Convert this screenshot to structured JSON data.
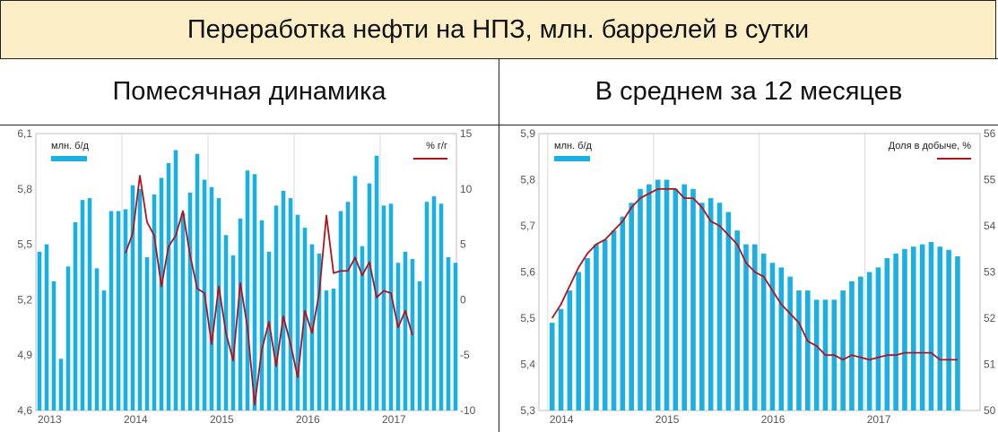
{
  "header": {
    "title": "Переработка нефти на НПЗ, млн. баррелей в сутки"
  },
  "panels": {
    "left_title": "Помесячная динамика",
    "right_title": "В среднем за 12 месяцев"
  },
  "colors": {
    "bar": "#1ab0e4",
    "line": "#b2131b",
    "grid": "#d9d9d9",
    "axis": "#555555"
  },
  "chart_data": [
    {
      "type": "bar+line",
      "title": "Помесячная динамика",
      "ylim_left": [
        4.6,
        6.1
      ],
      "yticks_left": [
        "4,6",
        "4,9",
        "5,2",
        "5,5",
        "5,8",
        "6,1"
      ],
      "ylim_right": [
        -10,
        15
      ],
      "yticks_right": [
        "-10",
        "-5",
        "0",
        "5",
        "10",
        "15"
      ],
      "x_labels": [
        "2013",
        "2014",
        "2015",
        "2016",
        "2017"
      ],
      "legend_bar": "млн. б/д",
      "legend_line": "% г/г",
      "grid": "vertical",
      "series": [
        {
          "name": "млн. б/д",
          "axis": "left",
          "start": "2013-01",
          "values": [
            5.46,
            5.5,
            5.3,
            4.88,
            5.38,
            5.62,
            5.74,
            5.75,
            5.37,
            5.25,
            5.68,
            5.68,
            5.69,
            5.82,
            5.8,
            5.43,
            5.77,
            5.86,
            5.94,
            6.01,
            5.67,
            5.78,
            5.99,
            5.85,
            5.81,
            5.75,
            5.55,
            5.44,
            5.64,
            5.9,
            5.88,
            5.63,
            5.46,
            5.71,
            5.79,
            5.75,
            5.66,
            5.59,
            5.5,
            5.45,
            5.25,
            5.26,
            5.68,
            5.73,
            5.87,
            5.49,
            5.83,
            5.98,
            5.71,
            5.72,
            5.4,
            5.46,
            5.42,
            5.3,
            5.73,
            5.76,
            5.72,
            5.43,
            5.4
          ]
        },
        {
          "name": "% г/г",
          "axis": "right",
          "start": "2014-01",
          "values": [
            4.2,
            6.0,
            11.2,
            7.0,
            5.8,
            1.2,
            4.8,
            5.8,
            8.0,
            4.0,
            1.0,
            0.6,
            -4.0,
            1.2,
            -3.0,
            -5.5,
            1.5,
            -2.5,
            -9.5,
            -4.5,
            -2.0,
            -6.0,
            -1.5,
            -4.0,
            -7.0,
            -1.0,
            -3.0,
            0.6,
            7.6,
            2.4,
            2.6,
            2.6,
            3.8,
            2.2,
            3.4,
            0.2,
            0.8,
            0.6,
            -2.5,
            -1.0,
            -3.2
          ]
        }
      ]
    },
    {
      "type": "bar+line",
      "title": "В среднем за 12 месяцев",
      "ylim_left": [
        5.3,
        5.9
      ],
      "yticks_left": [
        "5,3",
        "5,4",
        "5,5",
        "5,6",
        "5,7",
        "5,8",
        "5,9"
      ],
      "ylim_right": [
        50,
        56
      ],
      "yticks_right": [
        "50",
        "51",
        "52",
        "53",
        "54",
        "55",
        "56"
      ],
      "x_labels": [
        "2014",
        "2015",
        "2016",
        "2017"
      ],
      "legend_bar": "млн. б/д",
      "legend_line": "Доля в добыче, %",
      "grid": "vertical",
      "series": [
        {
          "name": "млн. б/д",
          "axis": "left",
          "start": "2014-01",
          "values": [
            5.49,
            5.52,
            5.56,
            5.6,
            5.63,
            5.66,
            5.67,
            5.69,
            5.72,
            5.75,
            5.78,
            5.79,
            5.8,
            5.8,
            5.78,
            5.79,
            5.78,
            5.75,
            5.76,
            5.75,
            5.73,
            5.69,
            5.66,
            5.66,
            5.64,
            5.62,
            5.61,
            5.59,
            5.56,
            5.56,
            5.54,
            5.54,
            5.54,
            5.56,
            5.58,
            5.59,
            5.6,
            5.61,
            5.63,
            5.64,
            5.65,
            5.655,
            5.66,
            5.665,
            5.655,
            5.648,
            5.634
          ]
        },
        {
          "name": "Доля в добыче, %",
          "axis": "right",
          "start": "2014-01",
          "values": [
            52.0,
            52.3,
            52.7,
            53.1,
            53.4,
            53.6,
            53.7,
            53.9,
            54.1,
            54.4,
            54.6,
            54.7,
            54.8,
            54.8,
            54.8,
            54.6,
            54.6,
            54.4,
            54.1,
            54.0,
            53.8,
            53.6,
            53.2,
            53.0,
            52.9,
            52.6,
            52.3,
            52.1,
            51.9,
            51.5,
            51.4,
            51.2,
            51.2,
            51.1,
            51.2,
            51.15,
            51.1,
            51.15,
            51.2,
            51.2,
            51.25,
            51.25,
            51.25,
            51.25,
            51.1,
            51.1,
            51.1
          ]
        }
      ]
    }
  ]
}
